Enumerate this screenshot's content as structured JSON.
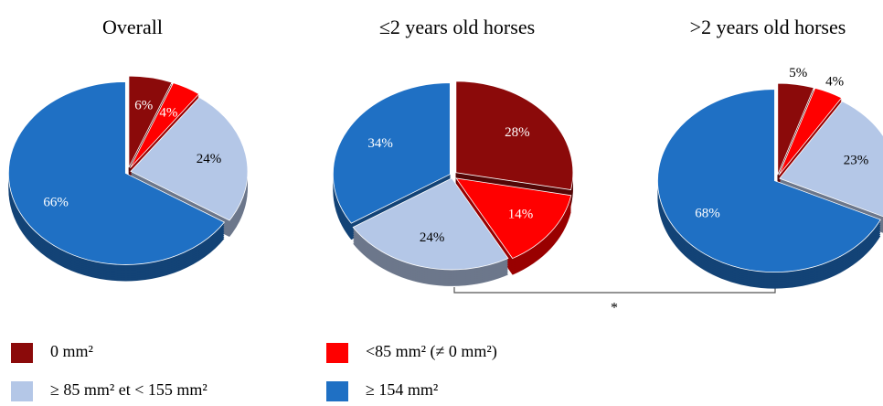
{
  "chart_data": [
    {
      "type": "pie",
      "title": "Overall",
      "values": [
        6,
        4,
        24,
        66
      ]
    },
    {
      "type": "pie",
      "title": "≤2 years old horses",
      "values": [
        28,
        14,
        24,
        34
      ]
    },
    {
      "type": "pie",
      "title": ">2 years old horses",
      "values": [
        5,
        4,
        23,
        68
      ]
    }
  ],
  "legend": {
    "labels": [
      "0 mm²",
      "<85 mm² (≠ 0 mm²)",
      "≥ 85 mm² et < 155 mm²",
      "≥ 154 mm²"
    ],
    "colors": [
      "#8b0a0a",
      "#ff0000",
      "#b4c7e7",
      "#1f70c4"
    ]
  },
  "annotation": "*"
}
